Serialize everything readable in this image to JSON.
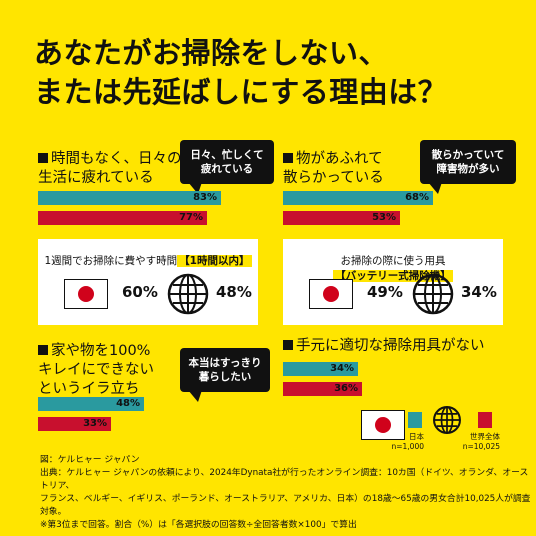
{
  "title": "あなたがお掃除をしない、\nまたは先延ばしにする理由は？",
  "colors": {
    "background": "#FFE500",
    "japan": "#2A9A9F",
    "world": "#C8102E",
    "dark": "#111111"
  },
  "panels": {
    "p1": {
      "label": "時間もなく、日々の\n生活に疲れている",
      "bubble": "日々、忙しくて\n疲れている"
    },
    "p2": {
      "label": "物があふれて\n散らかっている",
      "bubble": "散らかっていて\n障害物が多い"
    },
    "p3": {
      "label": "家や物を100%\nキレイにできない\nというイラ立ち",
      "bubble": "本当はすっきり\n暮らしたい"
    },
    "p4": {
      "label": "手元に適切な掃除用具がない"
    }
  },
  "cards": {
    "time": {
      "prefix": "1週間でお掃除に費やす時間",
      "highlight": "【1時間以内】",
      "japan_pct": "60%",
      "world_pct": "48%"
    },
    "tool": {
      "prefix": "お掃除の際に使う用具",
      "highlight": "【バッテリー式掃除機】",
      "japan_pct": "49%",
      "world_pct": "34%"
    }
  },
  "legend": {
    "japan": "日本\nn=1,000",
    "world": "世界全体\nn=10,025"
  },
  "footer": "図：ケルヒャー ジャパン\n出典：ケルヒャー ジャパンの依頼により、2024年Dynata社が行ったオンライン調査：10カ国（ドイツ、オランダ、オーストリア、\nフランス、ベルギー、イギリス、ポーランド、オーストラリア、アメリカ、日本）の18歳〜65歳の男女合計10,025人が調査対象。\n※第3位まで回答。割合（%）は「各選択肢の回答数÷全回答者数×100」で算出",
  "chart_data": {
    "type": "bar",
    "categories": [
      "時間もなく、日々の生活に疲れている",
      "物があふれて散らかっている",
      "家や物を100%キレイにできないというイラ立ち",
      "手元に適切な掃除用具がない"
    ],
    "series": [
      {
        "name": "日本",
        "values": [
          83,
          68,
          48,
          34
        ],
        "labels": [
          "83%",
          "68%",
          "48%",
          "34%"
        ]
      },
      {
        "name": "世界全体",
        "values": [
          77,
          53,
          33,
          36
        ],
        "labels": [
          "77%",
          "53%",
          "33%",
          "36%"
        ]
      }
    ],
    "xlim": [
      0,
      100
    ],
    "extra": [
      {
        "label": "1週間でお掃除に費やす時間【1時間以内】",
        "japan": 60,
        "world": 48
      },
      {
        "label": "お掃除の際に使う用具【バッテリー式掃除機】",
        "japan": 49,
        "world": 34
      }
    ]
  }
}
